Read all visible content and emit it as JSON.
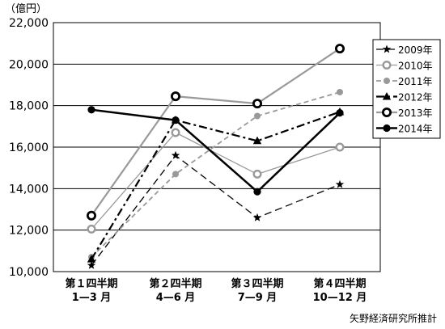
{
  "chart_data": {
    "type": "line",
    "unit": "（億円）",
    "source": "矢野経済研究所推計",
    "categories": [
      [
        "第１四半期",
        "1—3 月"
      ],
      [
        "第２四半期",
        "4—6 月"
      ],
      [
        "第３四半期",
        "7—9 月"
      ],
      [
        "第４四半期",
        "10—12 月"
      ]
    ],
    "ylim": [
      10000,
      22000
    ],
    "yticks": [
      10000,
      12000,
      14000,
      16000,
      18000,
      20000,
      22000
    ],
    "ytick_labels": [
      "10,000",
      "12,000",
      "14,000",
      "16,000",
      "18,000",
      "20,000",
      "22,000"
    ],
    "grid": "horizontal",
    "legend_position": "top-right",
    "series": [
      {
        "name": "2009年",
        "values": [
          10300,
          15600,
          12600,
          14200
        ],
        "color": "#000000",
        "dash": "9 5",
        "width": 1.3,
        "marker": "star"
      },
      {
        "name": "2010年",
        "values": [
          12050,
          16700,
          14700,
          16000
        ],
        "color": "#999999",
        "dash": "",
        "width": 1.3,
        "marker": "ring-small"
      },
      {
        "name": "2011年",
        "values": [
          10700,
          14700,
          17500,
          18650
        ],
        "color": "#999999",
        "dash": "6 4",
        "width": 1.8,
        "marker": "dot-gray"
      },
      {
        "name": "2012年",
        "values": [
          10600,
          17300,
          16300,
          17700
        ],
        "color": "#000000",
        "dash": "10 4 3 4",
        "width": 2.2,
        "marker": "triangle"
      },
      {
        "name": "2013年",
        "values": [
          12700,
          18450,
          18100,
          20750
        ],
        "color": "#9a9a9a",
        "dash": "",
        "width": 2.2,
        "marker": "ring-large"
      },
      {
        "name": "2014年",
        "values": [
          17800,
          17300,
          13850,
          17650
        ],
        "color": "#000000",
        "dash": "",
        "width": 2.5,
        "marker": "dot-black"
      }
    ]
  }
}
